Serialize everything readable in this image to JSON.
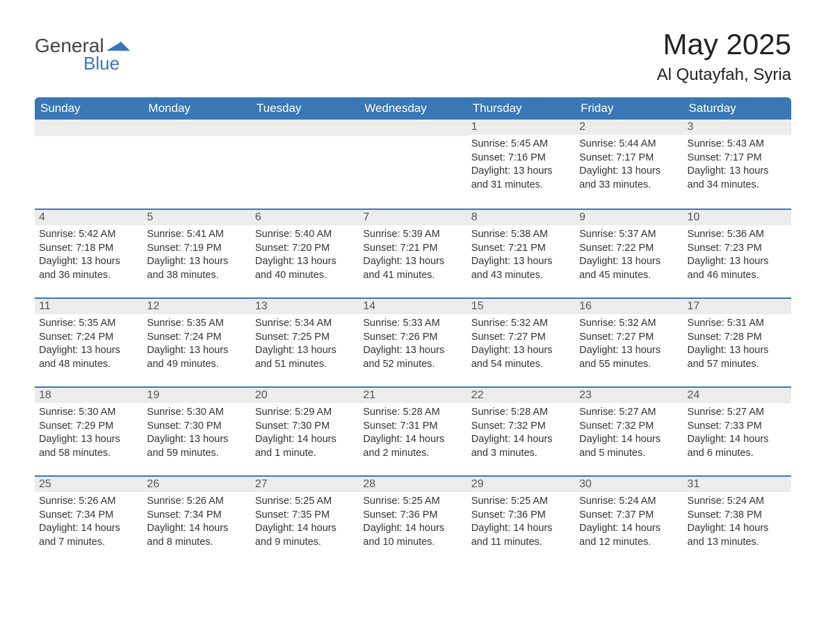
{
  "logo": {
    "general": "General",
    "blue": "Blue",
    "accent_color": "#3a78b5"
  },
  "title": "May 2025",
  "location": "Al Qutayfah, Syria",
  "header_bg": "#3a78b5",
  "header_fg": "#ffffff",
  "daynum_bg": "#ececec",
  "day_border": "#3a78b5",
  "columns": [
    "Sunday",
    "Monday",
    "Tuesday",
    "Wednesday",
    "Thursday",
    "Friday",
    "Saturday"
  ],
  "labels": {
    "sunrise": "Sunrise",
    "sunset": "Sunset",
    "daylight": "Daylight"
  },
  "weeks": [
    [
      null,
      null,
      null,
      null,
      {
        "n": "1",
        "sunrise": "5:45 AM",
        "sunset": "7:16 PM",
        "daylight": "13 hours and 31 minutes."
      },
      {
        "n": "2",
        "sunrise": "5:44 AM",
        "sunset": "7:17 PM",
        "daylight": "13 hours and 33 minutes."
      },
      {
        "n": "3",
        "sunrise": "5:43 AM",
        "sunset": "7:17 PM",
        "daylight": "13 hours and 34 minutes."
      }
    ],
    [
      {
        "n": "4",
        "sunrise": "5:42 AM",
        "sunset": "7:18 PM",
        "daylight": "13 hours and 36 minutes."
      },
      {
        "n": "5",
        "sunrise": "5:41 AM",
        "sunset": "7:19 PM",
        "daylight": "13 hours and 38 minutes."
      },
      {
        "n": "6",
        "sunrise": "5:40 AM",
        "sunset": "7:20 PM",
        "daylight": "13 hours and 40 minutes."
      },
      {
        "n": "7",
        "sunrise": "5:39 AM",
        "sunset": "7:21 PM",
        "daylight": "13 hours and 41 minutes."
      },
      {
        "n": "8",
        "sunrise": "5:38 AM",
        "sunset": "7:21 PM",
        "daylight": "13 hours and 43 minutes."
      },
      {
        "n": "9",
        "sunrise": "5:37 AM",
        "sunset": "7:22 PM",
        "daylight": "13 hours and 45 minutes."
      },
      {
        "n": "10",
        "sunrise": "5:36 AM",
        "sunset": "7:23 PM",
        "daylight": "13 hours and 46 minutes."
      }
    ],
    [
      {
        "n": "11",
        "sunrise": "5:35 AM",
        "sunset": "7:24 PM",
        "daylight": "13 hours and 48 minutes."
      },
      {
        "n": "12",
        "sunrise": "5:35 AM",
        "sunset": "7:24 PM",
        "daylight": "13 hours and 49 minutes."
      },
      {
        "n": "13",
        "sunrise": "5:34 AM",
        "sunset": "7:25 PM",
        "daylight": "13 hours and 51 minutes."
      },
      {
        "n": "14",
        "sunrise": "5:33 AM",
        "sunset": "7:26 PM",
        "daylight": "13 hours and 52 minutes."
      },
      {
        "n": "15",
        "sunrise": "5:32 AM",
        "sunset": "7:27 PM",
        "daylight": "13 hours and 54 minutes."
      },
      {
        "n": "16",
        "sunrise": "5:32 AM",
        "sunset": "7:27 PM",
        "daylight": "13 hours and 55 minutes."
      },
      {
        "n": "17",
        "sunrise": "5:31 AM",
        "sunset": "7:28 PM",
        "daylight": "13 hours and 57 minutes."
      }
    ],
    [
      {
        "n": "18",
        "sunrise": "5:30 AM",
        "sunset": "7:29 PM",
        "daylight": "13 hours and 58 minutes."
      },
      {
        "n": "19",
        "sunrise": "5:30 AM",
        "sunset": "7:30 PM",
        "daylight": "13 hours and 59 minutes."
      },
      {
        "n": "20",
        "sunrise": "5:29 AM",
        "sunset": "7:30 PM",
        "daylight": "14 hours and 1 minute."
      },
      {
        "n": "21",
        "sunrise": "5:28 AM",
        "sunset": "7:31 PM",
        "daylight": "14 hours and 2 minutes."
      },
      {
        "n": "22",
        "sunrise": "5:28 AM",
        "sunset": "7:32 PM",
        "daylight": "14 hours and 3 minutes."
      },
      {
        "n": "23",
        "sunrise": "5:27 AM",
        "sunset": "7:32 PM",
        "daylight": "14 hours and 5 minutes."
      },
      {
        "n": "24",
        "sunrise": "5:27 AM",
        "sunset": "7:33 PM",
        "daylight": "14 hours and 6 minutes."
      }
    ],
    [
      {
        "n": "25",
        "sunrise": "5:26 AM",
        "sunset": "7:34 PM",
        "daylight": "14 hours and 7 minutes."
      },
      {
        "n": "26",
        "sunrise": "5:26 AM",
        "sunset": "7:34 PM",
        "daylight": "14 hours and 8 minutes."
      },
      {
        "n": "27",
        "sunrise": "5:25 AM",
        "sunset": "7:35 PM",
        "daylight": "14 hours and 9 minutes."
      },
      {
        "n": "28",
        "sunrise": "5:25 AM",
        "sunset": "7:36 PM",
        "daylight": "14 hours and 10 minutes."
      },
      {
        "n": "29",
        "sunrise": "5:25 AM",
        "sunset": "7:36 PM",
        "daylight": "14 hours and 11 minutes."
      },
      {
        "n": "30",
        "sunrise": "5:24 AM",
        "sunset": "7:37 PM",
        "daylight": "14 hours and 12 minutes."
      },
      {
        "n": "31",
        "sunrise": "5:24 AM",
        "sunset": "7:38 PM",
        "daylight": "14 hours and 13 minutes."
      }
    ]
  ]
}
